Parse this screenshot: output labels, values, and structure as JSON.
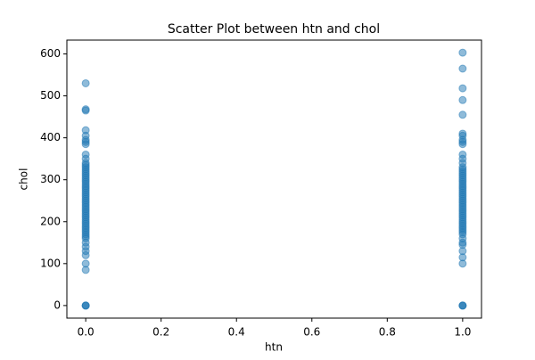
{
  "chart_data": {
    "type": "scatter",
    "title": "Scatter Plot between htn and chol",
    "x_label": "htn",
    "y_label": "chol",
    "color": "#1f77b4",
    "x": [
      0,
      0,
      0,
      0,
      0,
      0,
      0,
      0,
      0,
      0,
      0,
      0,
      0,
      0,
      0,
      0,
      0,
      0,
      0,
      0,
      0,
      0,
      0,
      0,
      0,
      0,
      0,
      0,
      0,
      0,
      0,
      0,
      0,
      0,
      0,
      0,
      0,
      0,
      0,
      0,
      0,
      0,
      0,
      0,
      0,
      0,
      0,
      0,
      0,
      0,
      0,
      0,
      0,
      0,
      0,
      0,
      1,
      1,
      1,
      1,
      1,
      1,
      1,
      1,
      1,
      1,
      1,
      1,
      1,
      1,
      1,
      1,
      1,
      1,
      1,
      1,
      1,
      1,
      1,
      1,
      1,
      1,
      1,
      1,
      1,
      1,
      1,
      1,
      1,
      1,
      1,
      1,
      1,
      1,
      1,
      1,
      1,
      1,
      1,
      1,
      1,
      1,
      1,
      1,
      1,
      1,
      1,
      1,
      1,
      1,
      1
    ],
    "values": [
      0,
      0,
      0,
      85,
      100,
      120,
      130,
      140,
      150,
      160,
      165,
      170,
      175,
      180,
      185,
      190,
      195,
      200,
      205,
      210,
      215,
      220,
      225,
      230,
      235,
      240,
      245,
      250,
      255,
      260,
      265,
      270,
      275,
      280,
      285,
      290,
      295,
      300,
      305,
      310,
      315,
      320,
      325,
      330,
      335,
      340,
      350,
      360,
      385,
      390,
      395,
      405,
      418,
      465,
      468,
      530,
      0,
      0,
      0,
      100,
      115,
      130,
      145,
      150,
      160,
      170,
      175,
      180,
      185,
      190,
      195,
      200,
      205,
      210,
      215,
      220,
      225,
      230,
      235,
      240,
      245,
      250,
      255,
      260,
      265,
      270,
      275,
      280,
      285,
      290,
      295,
      300,
      305,
      310,
      315,
      320,
      325,
      330,
      340,
      350,
      360,
      385,
      390,
      395,
      405,
      410,
      455,
      490,
      518,
      565,
      603
    ],
    "xlim": [
      -0.05,
      1.05
    ],
    "ylim": [
      -30,
      633
    ],
    "xticks": [
      {
        "value": 0,
        "label": "0.0"
      },
      0.2,
      0.4,
      0.6,
      0.8,
      {
        "value": 1,
        "label": "1.0"
      }
    ],
    "yticks": [
      0,
      100,
      200,
      300,
      400,
      500,
      600
    ]
  }
}
